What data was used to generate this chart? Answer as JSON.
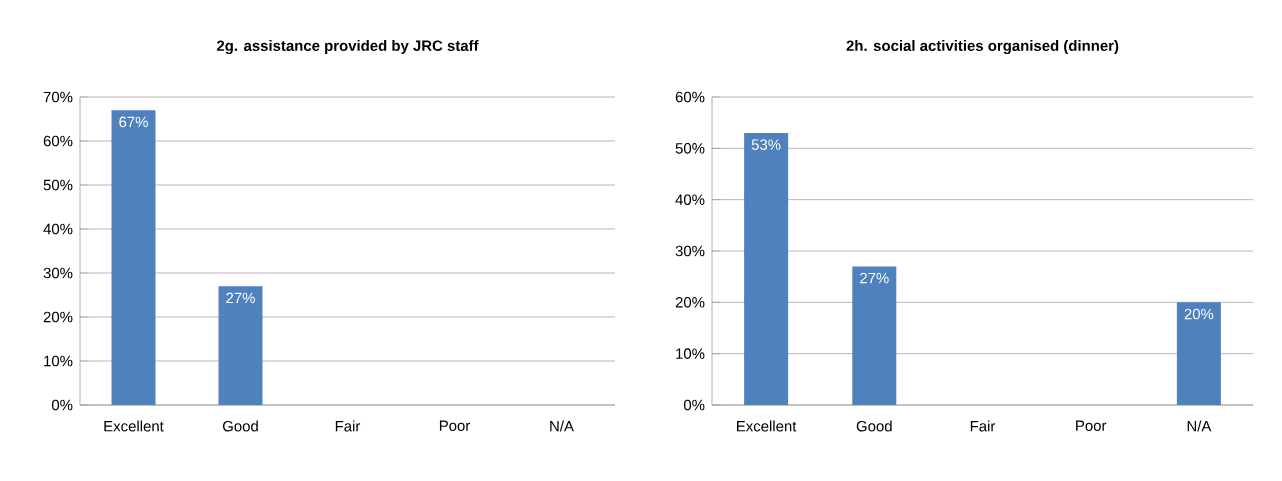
{
  "chart_data": [
    {
      "type": "bar",
      "title": "2g. assistance provided by JRC staff",
      "categories": [
        "Excellent",
        "Good",
        "Fair",
        "Poor",
        "N/A"
      ],
      "values": [
        67,
        27,
        0,
        0,
        0
      ],
      "value_labels": [
        "67%",
        "27%",
        null,
        null,
        null
      ],
      "color": "#4f81bd",
      "ylim": [
        0,
        70
      ],
      "yticks": [
        {
          "value": 0,
          "label": "0%"
        },
        {
          "value": 10,
          "label": "10%"
        },
        {
          "value": 20,
          "label": "20%"
        },
        {
          "value": 30,
          "label": "30%"
        },
        {
          "value": 40,
          "label": "40%"
        },
        {
          "value": 50,
          "label": "50%"
        },
        {
          "value": 60,
          "label": "60%"
        },
        {
          "value": 70,
          "label": "70%"
        }
      ],
      "grid": "y"
    },
    {
      "type": "bar",
      "title": "2h. social activities organised (dinner)",
      "categories": [
        "Excellent",
        "Good",
        "Fair",
        "Poor",
        "N/A"
      ],
      "values": [
        53,
        27,
        0,
        0,
        20
      ],
      "value_labels": [
        "53%",
        "27%",
        null,
        null,
        "20%"
      ],
      "color": "#4f81bd",
      "ylim": [
        0,
        60
      ],
      "yticks": [
        {
          "value": 0,
          "label": "0%"
        },
        {
          "value": 10,
          "label": "10%"
        },
        {
          "value": 20,
          "label": "20%"
        },
        {
          "value": 30,
          "label": "30%"
        },
        {
          "value": 40,
          "label": "40%"
        },
        {
          "value": 50,
          "label": "50%"
        },
        {
          "value": 60,
          "label": "60%"
        }
      ],
      "grid": "y"
    }
  ]
}
